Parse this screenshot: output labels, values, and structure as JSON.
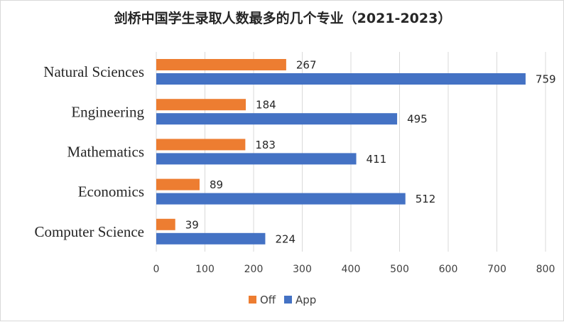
{
  "chart_data": {
    "type": "bar",
    "orientation": "horizontal",
    "title": "剑桥中国学生录取人数最多的几个专业（2021-2023）",
    "categories": [
      "Natural Sciences",
      "Engineering",
      "Mathematics",
      "Economics",
      "Computer Science"
    ],
    "series": [
      {
        "name": "Off",
        "color": "#ed7d31",
        "values": [
          267,
          184,
          183,
          89,
          39
        ]
      },
      {
        "name": "App",
        "color": "#4472c4",
        "values": [
          759,
          495,
          411,
          512,
          224
        ]
      }
    ],
    "xlim": [
      0,
      800
    ],
    "xticks": [
      0,
      100,
      200,
      300,
      400,
      500,
      600,
      700,
      800
    ],
    "grid": "vertical",
    "legend_position": "bottom"
  }
}
